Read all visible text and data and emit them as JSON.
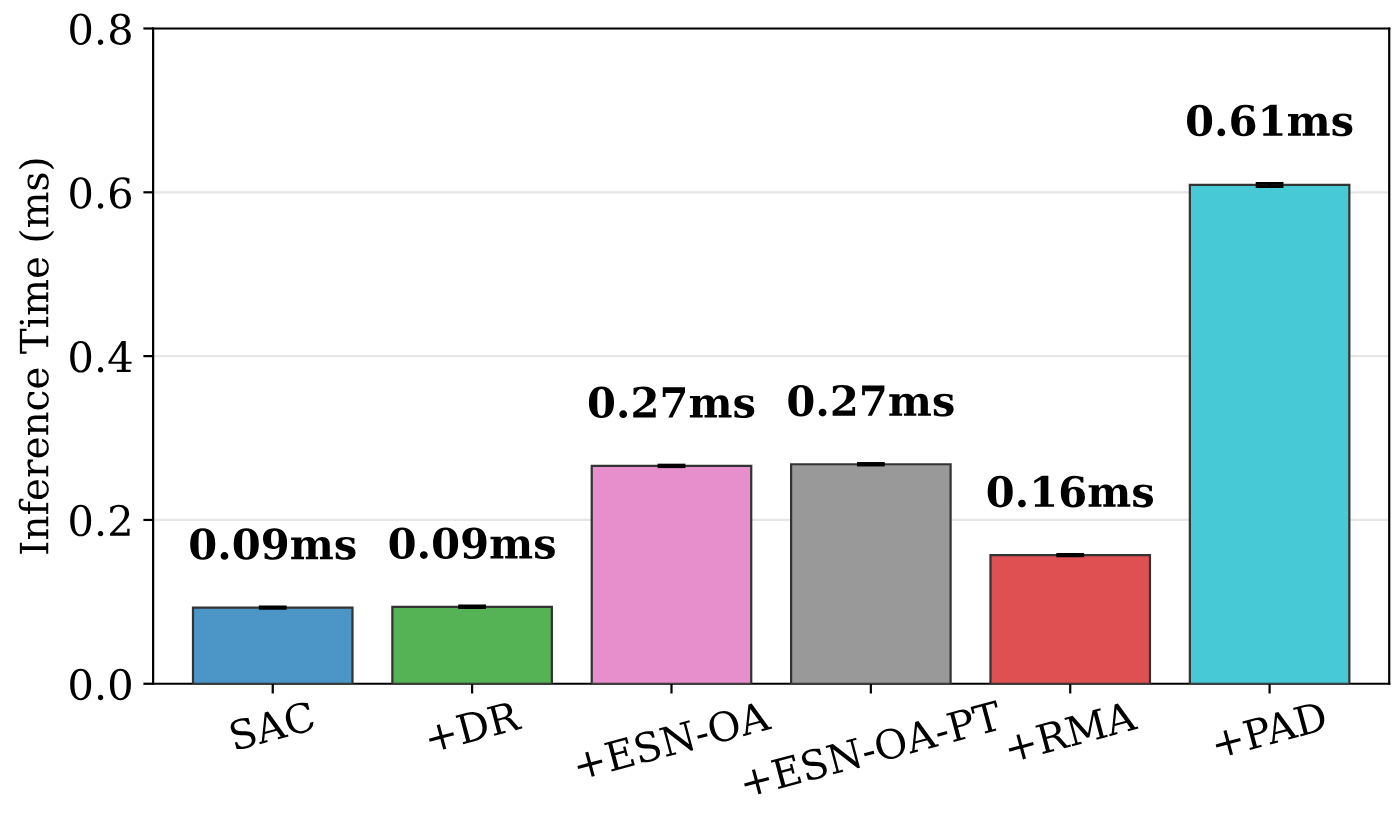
{
  "chart_data": {
    "type": "bar",
    "ylabel": "Inference Time (ms)",
    "categories": [
      "SAC",
      "+DR",
      "+ESN-OA",
      "+ESN-OA-PT",
      "+RMA",
      "+PAD"
    ],
    "values": [
      0.093,
      0.094,
      0.266,
      0.268,
      0.157,
      0.609
    ],
    "errors": [
      0.001,
      0.001,
      0.001,
      0.001,
      0.001,
      0.002
    ],
    "colors": [
      "#4c95c7",
      "#55b255",
      "#e78fcd",
      "#999999",
      "#df5052",
      "#47c9d6"
    ],
    "value_labels": [
      "0.09ms",
      "0.09ms",
      "0.27ms",
      "0.27ms",
      "0.16ms",
      "0.61ms"
    ],
    "ylim": [
      0,
      0.8
    ],
    "yticks": [
      {
        "value": 0,
        "label": "0.0"
      },
      0.2,
      0.4,
      0.6,
      0.8
    ],
    "grid": "y"
  }
}
